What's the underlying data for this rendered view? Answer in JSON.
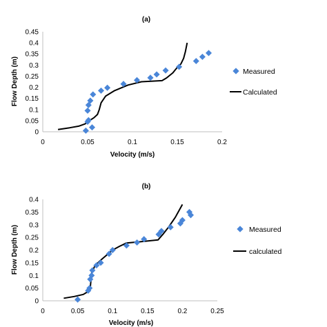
{
  "chart_data": [
    {
      "type": "scatter",
      "title": "(a)",
      "xlabel": "Velocity (m/s)",
      "ylabel": "Flow Depth (m)",
      "xlim": [
        0,
        0.2
      ],
      "ylim": [
        0,
        0.45
      ],
      "xticks": [
        "0",
        "0.05",
        "0.1",
        "0.15",
        "0.2"
      ],
      "yticks": [
        "0",
        "0.05",
        "0.1",
        "0.15",
        "0.2",
        "0.25",
        "0.3",
        "0.35",
        "0.4",
        "0.45"
      ],
      "grid": false,
      "legend_position": "right",
      "series": [
        {
          "name": "Measured",
          "kind": "markers",
          "marker": "diamond",
          "color": "#4A86D8",
          "points": [
            {
              "x": 0.048,
              "y": 0.005
            },
            {
              "x": 0.05,
              "y": 0.045
            },
            {
              "x": 0.051,
              "y": 0.052
            },
            {
              "x": 0.055,
              "y": 0.02
            },
            {
              "x": 0.05,
              "y": 0.095
            },
            {
              "x": 0.051,
              "y": 0.12
            },
            {
              "x": 0.053,
              "y": 0.14
            },
            {
              "x": 0.056,
              "y": 0.168
            },
            {
              "x": 0.065,
              "y": 0.185
            },
            {
              "x": 0.072,
              "y": 0.198
            },
            {
              "x": 0.09,
              "y": 0.215
            },
            {
              "x": 0.105,
              "y": 0.232
            },
            {
              "x": 0.12,
              "y": 0.243
            },
            {
              "x": 0.127,
              "y": 0.258
            },
            {
              "x": 0.137,
              "y": 0.276
            },
            {
              "x": 0.152,
              "y": 0.292
            },
            {
              "x": 0.171,
              "y": 0.318
            },
            {
              "x": 0.178,
              "y": 0.337
            },
            {
              "x": 0.185,
              "y": 0.354
            }
          ]
        },
        {
          "name": "Calculated",
          "kind": "line",
          "color": "#000000",
          "points": [
            {
              "x": 0.017,
              "y": 0.01
            },
            {
              "x": 0.03,
              "y": 0.018
            },
            {
              "x": 0.04,
              "y": 0.025
            },
            {
              "x": 0.047,
              "y": 0.035
            },
            {
              "x": 0.052,
              "y": 0.05
            },
            {
              "x": 0.057,
              "y": 0.063
            },
            {
              "x": 0.061,
              "y": 0.078
            },
            {
              "x": 0.063,
              "y": 0.1
            },
            {
              "x": 0.065,
              "y": 0.13
            },
            {
              "x": 0.07,
              "y": 0.16
            },
            {
              "x": 0.08,
              "y": 0.185
            },
            {
              "x": 0.095,
              "y": 0.21
            },
            {
              "x": 0.11,
              "y": 0.225
            },
            {
              "x": 0.133,
              "y": 0.23
            },
            {
              "x": 0.138,
              "y": 0.242
            },
            {
              "x": 0.145,
              "y": 0.265
            },
            {
              "x": 0.15,
              "y": 0.29
            },
            {
              "x": 0.154,
              "y": 0.305
            },
            {
              "x": 0.157,
              "y": 0.33
            },
            {
              "x": 0.159,
              "y": 0.36
            },
            {
              "x": 0.161,
              "y": 0.4
            }
          ]
        }
      ]
    },
    {
      "type": "scatter",
      "title": "(b)",
      "xlabel": "Velocity (m/s)",
      "ylabel": "Flow Depth (m)",
      "xlim": [
        0,
        0.25
      ],
      "ylim": [
        0,
        0.4
      ],
      "xticks": [
        "0",
        "0.05",
        "0.1",
        "0.15",
        "0.2",
        "0.25"
      ],
      "yticks": [
        "0",
        "0.05",
        "0.1",
        "0.15",
        "0.2",
        "0.25",
        "0.3",
        "0.35",
        "0.4"
      ],
      "grid": false,
      "legend_position": "right",
      "series": [
        {
          "name": "Measured",
          "kind": "markers",
          "marker": "diamond",
          "color": "#4A86D8",
          "points": [
            {
              "x": 0.05,
              "y": 0.005
            },
            {
              "x": 0.065,
              "y": 0.04
            },
            {
              "x": 0.067,
              "y": 0.05
            },
            {
              "x": 0.068,
              "y": 0.085
            },
            {
              "x": 0.07,
              "y": 0.1
            },
            {
              "x": 0.071,
              "y": 0.12
            },
            {
              "x": 0.077,
              "y": 0.14
            },
            {
              "x": 0.083,
              "y": 0.15
            },
            {
              "x": 0.095,
              "y": 0.185
            },
            {
              "x": 0.1,
              "y": 0.2
            },
            {
              "x": 0.12,
              "y": 0.218
            },
            {
              "x": 0.135,
              "y": 0.23
            },
            {
              "x": 0.145,
              "y": 0.243
            },
            {
              "x": 0.166,
              "y": 0.262
            },
            {
              "x": 0.17,
              "y": 0.275
            },
            {
              "x": 0.183,
              "y": 0.29
            },
            {
              "x": 0.197,
              "y": 0.305
            },
            {
              "x": 0.2,
              "y": 0.318
            },
            {
              "x": 0.21,
              "y": 0.35
            },
            {
              "x": 0.212,
              "y": 0.338
            }
          ]
        },
        {
          "name": "calculated",
          "kind": "line",
          "color": "#000000",
          "points": [
            {
              "x": 0.03,
              "y": 0.01
            },
            {
              "x": 0.045,
              "y": 0.017
            },
            {
              "x": 0.058,
              "y": 0.025
            },
            {
              "x": 0.064,
              "y": 0.035
            },
            {
              "x": 0.068,
              "y": 0.05
            },
            {
              "x": 0.069,
              "y": 0.08
            },
            {
              "x": 0.07,
              "y": 0.11
            },
            {
              "x": 0.075,
              "y": 0.14
            },
            {
              "x": 0.085,
              "y": 0.165
            },
            {
              "x": 0.1,
              "y": 0.2
            },
            {
              "x": 0.11,
              "y": 0.215
            },
            {
              "x": 0.12,
              "y": 0.228
            },
            {
              "x": 0.14,
              "y": 0.233
            },
            {
              "x": 0.165,
              "y": 0.24
            },
            {
              "x": 0.172,
              "y": 0.262
            },
            {
              "x": 0.18,
              "y": 0.29
            },
            {
              "x": 0.19,
              "y": 0.33
            },
            {
              "x": 0.2,
              "y": 0.38
            }
          ]
        }
      ]
    }
  ]
}
